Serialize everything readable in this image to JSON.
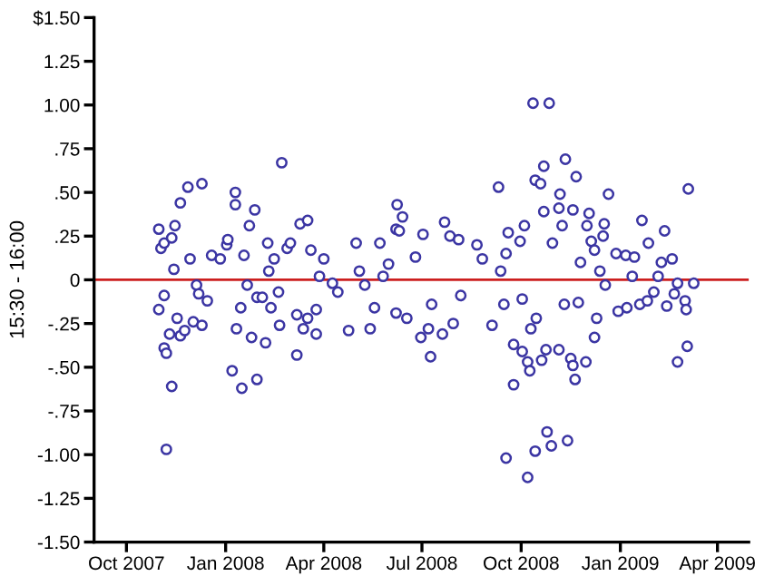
{
  "chart_data": {
    "type": "scatter",
    "ylabel": "15:30 - 16:00",
    "xlim": [
      "2007-09-01",
      "2009-04-30"
    ],
    "xticks": [
      {
        "value": "2007-10-01",
        "label": "Oct 2007"
      },
      {
        "value": "2008-01-01",
        "label": "Jan 2008"
      },
      {
        "value": "2008-04-01",
        "label": "Apr 2008"
      },
      {
        "value": "2008-07-01",
        "label": "Jul 2008"
      },
      {
        "value": "2008-10-01",
        "label": "Oct 2008"
      },
      {
        "value": "2009-01-01",
        "label": "Jan 2009"
      },
      {
        "value": "2009-04-01",
        "label": "Apr 2009"
      }
    ],
    "ylim": [
      -1.5,
      1.5
    ],
    "yticks": [
      {
        "value": 1.5,
        "label": "$1.50"
      },
      {
        "value": 1.25,
        "label": "1.25"
      },
      {
        "value": 1.0,
        "label": "1.00"
      },
      {
        "value": 0.75,
        "label": ".75"
      },
      {
        "value": 0.5,
        "label": ".50"
      },
      {
        "value": 0.25,
        "label": ".25"
      },
      0,
      {
        "value": -0.25,
        "label": "-.25"
      },
      {
        "value": -0.5,
        "label": "-.50"
      },
      {
        "value": -0.75,
        "label": "-.75"
      },
      {
        "value": -1.0,
        "label": "-1.00"
      },
      {
        "value": -1.25,
        "label": "-1.25"
      },
      {
        "value": -1.5,
        "label": "-1.50"
      }
    ],
    "grid": false,
    "marker": "circle",
    "ref_lines": [
      {
        "axis": "y",
        "value": 0,
        "color": "#cc1f1f",
        "line_style": "solid"
      }
    ],
    "series": [
      {
        "color": "#3b35a3",
        "x": [
          "2008-10-12",
          "2008-10-27",
          "2008-02-22",
          "2008-11-11",
          "2008-10-22",
          "2008-11-21",
          "2008-09-10",
          "2008-10-14",
          "2008-10-19",
          "2007-11-27",
          "2007-12-10",
          "2008-01-10",
          "2008-11-06",
          "2008-12-21",
          "2009-03-05",
          "2007-10-31",
          "2007-11-02",
          "2007-11-05",
          "2007-11-12",
          "2007-11-15",
          "2007-11-20",
          "2007-10-31",
          "2007-11-05",
          "2007-11-10",
          "2007-11-05",
          "2007-11-07",
          "2007-11-12",
          "2007-11-17",
          "2007-11-20",
          "2007-11-24",
          "2007-11-14",
          "2007-11-29",
          "2007-12-02",
          "2007-12-10",
          "2007-12-05",
          "2007-12-07",
          "2007-12-15",
          "2007-12-19",
          "2007-12-27",
          "2008-01-02",
          "2008-01-03",
          "2008-01-10",
          "2008-01-07",
          "2008-01-11",
          "2008-01-16",
          "2008-01-15",
          "2008-01-18",
          "2008-01-23",
          "2008-01-28",
          "2008-01-25",
          "2008-01-30",
          "2008-01-21",
          "2008-01-30",
          "2008-02-07",
          "2008-02-04",
          "2008-02-09",
          "2008-02-10",
          "2008-02-15",
          "2008-02-12",
          "2008-02-19",
          "2008-02-20",
          "2008-02-27",
          "2008-03-01",
          "2008-03-07",
          "2008-03-07",
          "2008-03-10",
          "2008-03-17",
          "2008-03-13",
          "2008-03-17",
          "2008-03-25",
          "2008-03-25",
          "2008-03-20",
          "2008-04-01",
          "2008-03-28",
          "2008-04-09",
          "2008-04-14",
          "2008-04-24",
          "2008-05-01",
          "2008-05-04",
          "2008-05-09",
          "2008-05-14",
          "2008-05-18",
          "2008-05-23",
          "2008-05-31",
          "2008-06-07",
          "2008-06-08",
          "2008-06-13",
          "2008-06-10",
          "2008-05-26",
          "2008-06-07",
          "2008-06-17",
          "2008-06-25",
          "2008-07-02",
          "2008-06-30",
          "2008-07-09",
          "2008-07-07",
          "2008-07-10",
          "2008-07-22",
          "2008-07-20",
          "2008-07-30",
          "2008-07-27",
          "2008-08-04",
          "2008-08-06",
          "2008-08-21",
          "2008-08-26",
          "2008-09-04",
          "2008-09-12",
          "2008-09-17",
          "2008-09-15",
          "2008-09-24",
          "2008-09-24",
          "2008-09-19",
          "2008-09-30",
          "2008-10-02",
          "2008-10-04",
          "2008-10-02",
          "2008-10-07",
          "2008-10-09",
          "2008-10-10",
          "2008-10-15",
          "2008-10-20",
          "2008-10-22",
          "2008-10-24",
          "2008-10-30",
          "2008-11-05",
          "2008-11-05",
          "2008-11-10",
          "2008-11-08",
          "2008-11-18",
          "2008-11-16",
          "2008-11-20",
          "2008-11-30",
          "2008-11-23",
          "2008-11-25",
          "2008-12-01",
          "2008-12-03",
          "2008-12-05",
          "2008-12-08",
          "2008-12-08",
          "2008-12-10",
          "2008-12-13",
          "2008-12-16",
          "2008-12-17",
          "2008-12-18",
          "2008-12-28",
          "2008-12-30",
          "2009-01-07",
          "2009-01-06",
          "2009-01-12",
          "2009-01-14",
          "2009-01-19",
          "2009-01-21",
          "2009-01-27",
          "2009-01-26",
          "2009-02-01",
          "2009-02-05",
          "2009-02-08",
          "2009-02-11",
          "2009-02-13",
          "2009-02-18",
          "2009-02-20",
          "2009-02-23",
          "2009-03-02",
          "2009-03-03",
          "2009-03-04",
          "2009-02-23",
          "2009-03-10",
          "2007-11-07",
          "2008-09-17",
          "2008-10-07",
          "2008-10-14",
          "2008-10-25",
          "2008-10-29",
          "2008-11-13",
          "2008-11-18"
        ],
        "values": [
          1.01,
          1.01,
          0.67,
          0.69,
          0.65,
          0.59,
          0.53,
          0.57,
          0.55,
          0.53,
          0.55,
          0.5,
          0.49,
          0.49,
          0.52,
          0.29,
          0.18,
          0.21,
          0.24,
          0.31,
          0.44,
          -0.17,
          -0.09,
          -0.31,
          -0.39,
          -0.42,
          -0.61,
          -0.22,
          -0.32,
          -0.29,
          0.06,
          0.12,
          -0.24,
          -0.26,
          -0.03,
          -0.08,
          -0.12,
          0.14,
          0.12,
          0.2,
          0.23,
          0.43,
          -0.52,
          -0.28,
          -0.62,
          -0.16,
          0.14,
          0.31,
          0.4,
          -0.33,
          -0.57,
          -0.03,
          -0.1,
          -0.36,
          -0.1,
          0.21,
          0.05,
          0.12,
          -0.16,
          -0.07,
          -0.26,
          0.18,
          0.21,
          -0.43,
          -0.2,
          0.32,
          0.34,
          -0.28,
          -0.22,
          -0.31,
          -0.17,
          0.17,
          0.12,
          0.02,
          -0.02,
          -0.07,
          -0.29,
          0.21,
          0.05,
          -0.03,
          -0.28,
          -0.16,
          0.21,
          0.09,
          0.29,
          0.43,
          0.36,
          0.28,
          0.02,
          -0.19,
          -0.22,
          0.13,
          0.26,
          -0.33,
          -0.44,
          -0.28,
          -0.14,
          0.33,
          -0.31,
          -0.25,
          0.25,
          0.23,
          -0.09,
          0.2,
          0.12,
          -0.26,
          0.05,
          0.15,
          -0.14,
          -0.37,
          -0.6,
          0.27,
          0.22,
          -0.11,
          0.31,
          -0.41,
          -0.47,
          -0.52,
          -0.28,
          -0.22,
          -0.46,
          0.39,
          -0.4,
          0.21,
          0.41,
          -0.4,
          -0.14,
          0.31,
          0.4,
          -0.45,
          -0.57,
          -0.47,
          -0.13,
          0.1,
          0.31,
          0.38,
          0.22,
          0.17,
          -0.33,
          -0.22,
          0.05,
          0.25,
          0.32,
          -0.03,
          0.15,
          -0.18,
          -0.16,
          0.14,
          0.02,
          0.13,
          -0.14,
          0.34,
          0.21,
          -0.12,
          -0.07,
          0.02,
          0.1,
          0.28,
          -0.15,
          0.12,
          -0.08,
          -0.02,
          -0.12,
          -0.17,
          -0.38,
          -0.47,
          -0.02,
          -0.97,
          -1.02,
          -1.13,
          -0.98,
          -0.87,
          -0.95,
          -0.92,
          -0.49
        ]
      }
    ]
  }
}
